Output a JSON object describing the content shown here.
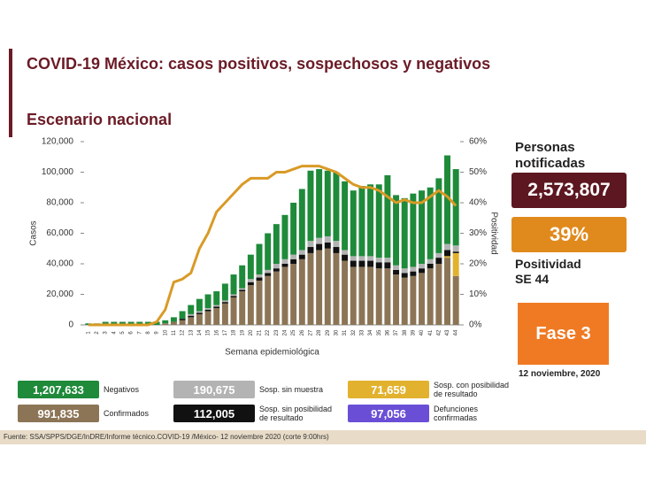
{
  "header": {
    "title": "COVID-19 México: casos positivos, sospechosos y negativos",
    "subtitle": "Escenario nacional"
  },
  "panel": {
    "notified_label": "Personas notificadas",
    "notified_value": "2,573,807",
    "positivity_value": "39%",
    "positivity_label": "Positividad SE 44",
    "phase": "Fase 3",
    "date": "12 noviembre, 2020"
  },
  "footer": "Fuente: SSA/SPPS/DGE/InDRE/Informe técnico.COVID-19 /México- 12 noviembre 2020 (corte 9:00hrs)",
  "chart_data": {
    "type": "bar",
    "stacked": true,
    "x_label": "Semana epidemiológica",
    "y_label": "Casos",
    "y2_label": "Positividad",
    "categories": [
      "1",
      "2",
      "3",
      "4",
      "5",
      "6",
      "7",
      "8",
      "9",
      "10",
      "11",
      "12",
      "13",
      "14",
      "15",
      "16",
      "17",
      "18",
      "19",
      "20",
      "21",
      "22",
      "23",
      "24",
      "25",
      "26",
      "27",
      "28",
      "29",
      "30",
      "31",
      "32",
      "33",
      "34",
      "35",
      "36",
      "37",
      "38",
      "39",
      "40",
      "41",
      "42",
      "43",
      "44"
    ],
    "ylim": [
      0,
      120000
    ],
    "yticks": [
      0,
      {
        "value": 20000,
        "label": "20,000"
      },
      {
        "value": 40000,
        "label": "40,000"
      },
      {
        "value": 60000,
        "label": "60,000"
      },
      {
        "value": 80000,
        "label": "80,000"
      },
      {
        "value": 100000,
        "label": "100,000"
      },
      {
        "value": 120000,
        "label": "120,000"
      }
    ],
    "y2lim": [
      0,
      60
    ],
    "y2ticks": [
      {
        "value": 0,
        "label": "0%"
      },
      {
        "value": 10,
        "label": "10%"
      },
      {
        "value": 20,
        "label": "20%"
      },
      {
        "value": 30,
        "label": "30%"
      },
      {
        "value": 40,
        "label": "40%"
      },
      {
        "value": 50,
        "label": "50%"
      },
      {
        "value": 60,
        "label": "60%"
      }
    ],
    "series": [
      {
        "name": "Confirmados",
        "color": "#8c7556",
        "total_label": "991,835",
        "values": [
          0,
          0,
          0,
          0,
          0,
          0,
          0,
          0,
          0,
          1000,
          2000,
          3000,
          5000,
          7000,
          9000,
          11000,
          14000,
          18000,
          22000,
          26000,
          29000,
          32000,
          35000,
          38000,
          40000,
          43000,
          47000,
          49000,
          50000,
          47000,
          42000,
          38000,
          38000,
          38000,
          37000,
          37000,
          33000,
          31000,
          32000,
          34000,
          37000,
          40000,
          44000,
          32000
        ]
      },
      {
        "name": "Sosp. con posibilidad de resultado",
        "color": "#e2b22e",
        "total_label": "71,659",
        "values": [
          0,
          0,
          0,
          0,
          0,
          0,
          0,
          0,
          0,
          0,
          0,
          0,
          0,
          0,
          0,
          0,
          0,
          0,
          0,
          0,
          0,
          0,
          0,
          0,
          0,
          0,
          0,
          0,
          0,
          0,
          0,
          0,
          0,
          0,
          0,
          0,
          0,
          0,
          0,
          0,
          0,
          0,
          1000,
          15000
        ]
      },
      {
        "name": "Sosp. sin posibilidad de resultado",
        "color": "#111111",
        "total_label": "112,005",
        "values": [
          0,
          0,
          0,
          0,
          0,
          0,
          0,
          0,
          0,
          0,
          0,
          1000,
          1000,
          1000,
          1000,
          1000,
          1000,
          1000,
          1000,
          2000,
          2000,
          2000,
          2000,
          2000,
          3000,
          3000,
          4000,
          4000,
          4000,
          4000,
          4000,
          4000,
          4000,
          4000,
          4000,
          4000,
          3000,
          3000,
          3000,
          3000,
          3000,
          4000,
          4000,
          1000
        ]
      },
      {
        "name": "Sosp. sin muestra",
        "color": "#b3b3b3",
        "total_label": "190,675",
        "values": [
          0,
          0,
          0,
          0,
          0,
          0,
          0,
          0,
          0,
          0,
          0,
          0,
          1000,
          1000,
          1000,
          1000,
          1000,
          1000,
          1000,
          2000,
          2000,
          2000,
          3000,
          3000,
          3000,
          3000,
          4000,
          4000,
          4000,
          4000,
          3000,
          3000,
          3000,
          3000,
          3000,
          3000,
          3000,
          3000,
          3000,
          3000,
          3000,
          3000,
          4000,
          4000
        ]
      },
      {
        "name": "Negativos",
        "color": "#1e8a3a",
        "total_label": "1,207,633",
        "values": [
          1000,
          1000,
          2000,
          2000,
          2000,
          2000,
          2000,
          2000,
          2000,
          2000,
          3000,
          5000,
          6000,
          8000,
          9000,
          9000,
          11000,
          13000,
          15000,
          16000,
          20000,
          24000,
          26000,
          29000,
          34000,
          40000,
          46000,
          45000,
          43000,
          45000,
          45000,
          43000,
          46000,
          47000,
          48000,
          54000,
          46000,
          46000,
          48000,
          48000,
          47000,
          49000,
          58000,
          50000
        ]
      },
      {
        "name": "Positividad",
        "color": "#d99a26",
        "axis": "y2",
        "values": [
          0,
          0,
          0,
          0,
          0,
          0,
          0,
          0,
          1,
          5,
          14,
          15,
          17,
          25,
          30,
          37,
          40,
          43,
          46,
          48,
          48,
          48,
          50,
          50,
          51,
          52,
          52,
          52,
          51,
          50,
          48,
          46,
          45,
          45,
          44,
          42,
          40,
          41,
          40,
          40,
          42,
          44,
          42,
          39
        ]
      }
    ],
    "extra_legend": {
      "name": "Defunciones confirmadas",
      "color": "#6a4fd6",
      "total_label": "97,056"
    }
  }
}
